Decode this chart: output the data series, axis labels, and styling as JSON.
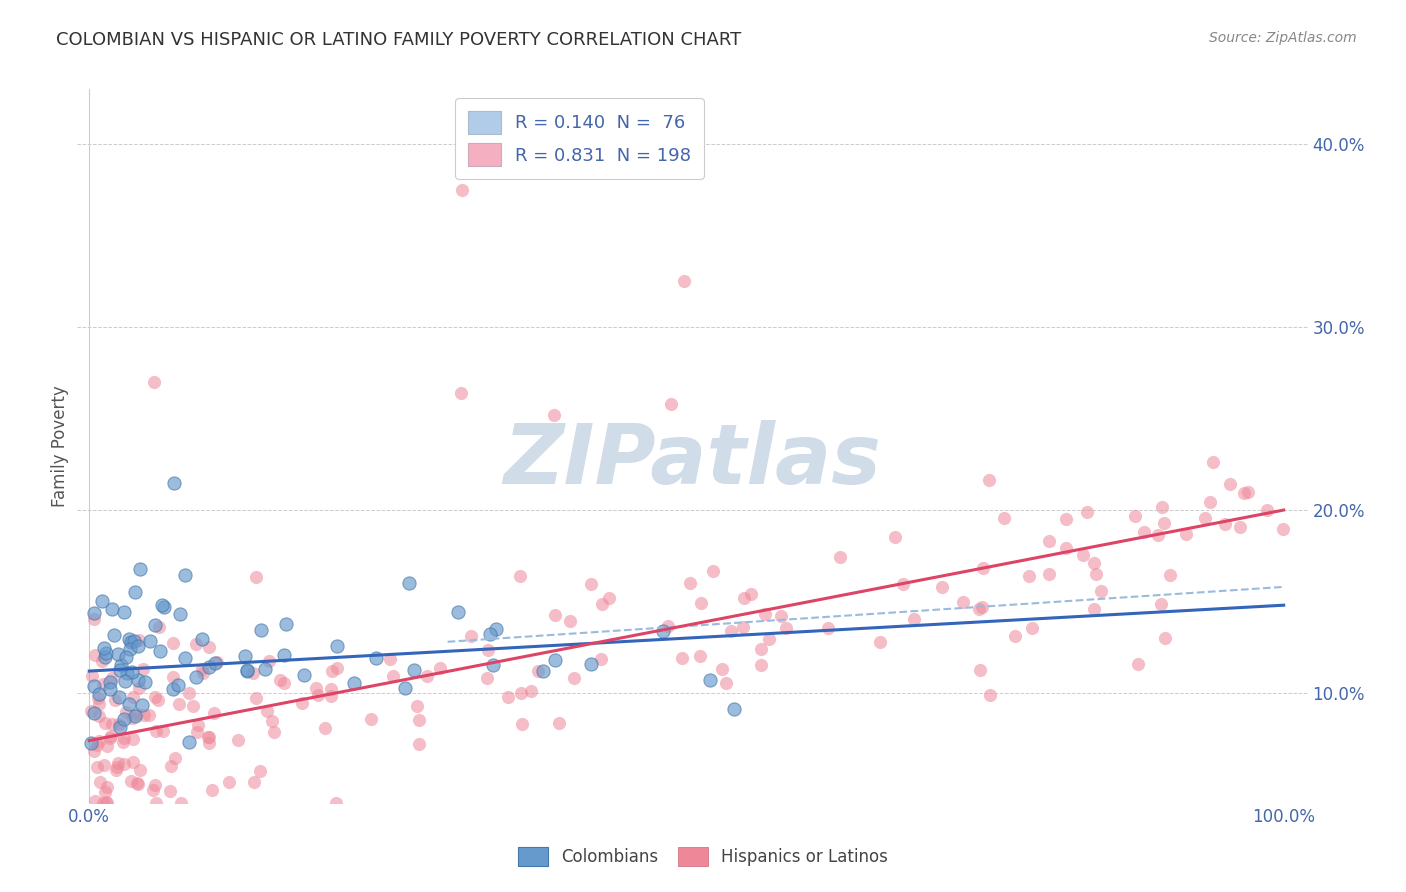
{
  "title": "COLOMBIAN VS HISPANIC OR LATINO FAMILY POVERTY CORRELATION CHART",
  "source": "Source: ZipAtlas.com",
  "ylabel": "Family Poverty",
  "ylim": [
    0.04,
    0.43
  ],
  "xlim": [
    -0.01,
    1.02
  ],
  "ytick_positions": [
    0.1,
    0.2,
    0.3,
    0.4
  ],
  "ytick_labels": [
    "10.0%",
    "20.0%",
    "30.0%",
    "40.0%"
  ],
  "xtick_positions": [
    0.0,
    0.1,
    0.2,
    0.3,
    0.4,
    0.5,
    0.6,
    0.7,
    0.8,
    0.9,
    1.0
  ],
  "xtick_labels": [
    "0.0%",
    "",
    "",
    "",
    "",
    "",
    "",
    "",
    "",
    "",
    "100.0%"
  ],
  "legend_label_blue": "R = 0.140  N =  76",
  "legend_label_pink": "R = 0.831  N = 198",
  "legend_color_blue": "#b0cce8",
  "legend_color_pink": "#f4b0c0",
  "bottom_legend_label1": "Colombians",
  "bottom_legend_label2": "Hispanics or Latinos",
  "blue_dot_color": "#6699cc",
  "blue_dot_edge_color": "#4477aa",
  "pink_dot_color": "#ee8899",
  "blue_line_color": "#3366bb",
  "pink_line_color": "#dd4466",
  "dashed_line_color": "#99bbdd",
  "watermark_color": "#d0dce8",
  "grid_color": "#cccccc",
  "background_color": "#ffffff",
  "title_color": "#333333",
  "axis_tick_color": "#4466aa",
  "blue_line_x0": 0.0,
  "blue_line_x1": 1.0,
  "blue_line_y0": 0.112,
  "blue_line_y1": 0.148,
  "pink_line_x0": 0.0,
  "pink_line_x1": 1.0,
  "pink_line_y0": 0.074,
  "pink_line_y1": 0.2,
  "dashed_line_x0": 0.3,
  "dashed_line_x1": 1.0,
  "dashed_line_y0": 0.128,
  "dashed_line_y1": 0.158
}
